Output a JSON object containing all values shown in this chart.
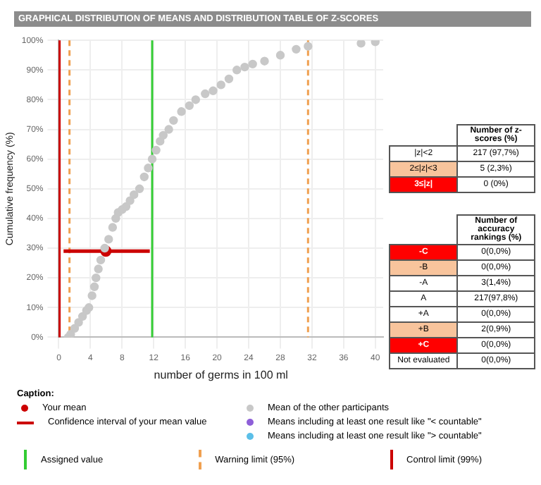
{
  "chart_data": [
    {
      "type": "scatter",
      "title": "GRAPHICAL DISTRIBUTION OF MEANS AND DISTRIBUTION TABLE OF Z-SCORES",
      "xlabel": "number of germs in 100 ml",
      "ylabel": "Cumulative frequency (%)",
      "legend_title": "Caption:",
      "legend": "bottom",
      "grid": true,
      "marker": "circle",
      "xlim": [
        0,
        41
      ],
      "xticks": [
        0,
        4,
        8,
        12,
        16,
        20,
        24,
        28,
        32,
        36,
        40
      ],
      "ylim": [
        0,
        100
      ],
      "yticks": [
        {
          "value": 0,
          "label": "0%"
        },
        {
          "value": 10,
          "label": "10%"
        },
        {
          "value": 20,
          "label": "20%"
        },
        {
          "value": 30,
          "label": "30%"
        },
        {
          "value": 40,
          "label": "40%"
        },
        {
          "value": 50,
          "label": "50%"
        },
        {
          "value": 60,
          "label": "60%"
        },
        {
          "value": 70,
          "label": "70%"
        },
        {
          "value": 80,
          "label": "80%"
        },
        {
          "value": 90,
          "label": "90%"
        },
        {
          "value": 100,
          "label": "100%"
        }
      ],
      "series": [
        {
          "name": "Mean of the other participants",
          "color": "#c8c8c8",
          "x": [
            1.2,
            1.5,
            2,
            2.5,
            3,
            3.5,
            3.8,
            4.2,
            4.5,
            4.7,
            5,
            5.3,
            5.8,
            6.3,
            6.8,
            7.2,
            7.5,
            8,
            8.5,
            9,
            9.5,
            10.2,
            10.8,
            11.3,
            11.8,
            12.3,
            12.8,
            13.2,
            13.9,
            14.5,
            15.5,
            16.5,
            17.3,
            18.5,
            19.5,
            20.5,
            21.5,
            22.5,
            23.5,
            24.5,
            26,
            28,
            30,
            31.5,
            38.2,
            40
          ],
          "values": [
            0,
            1,
            3,
            5,
            7,
            9,
            10,
            14,
            17,
            20,
            23,
            26,
            30,
            33,
            37,
            40,
            42,
            43,
            44,
            46,
            48,
            50,
            54,
            57,
            60,
            63,
            66,
            68,
            70,
            73,
            76,
            78,
            80,
            82,
            83,
            85,
            87,
            90,
            91,
            92,
            93,
            95,
            97,
            98,
            99,
            99.5
          ]
        },
        {
          "name": "Your mean",
          "color": "#cc0000",
          "x": [
            5.95
          ],
          "values": [
            29
          ],
          "xerrors": [
            [
              0.6,
              11.5
            ]
          ]
        },
        {
          "name": "Means including at least one result like \"< countable\"",
          "color": "#8e5fd8"
        },
        {
          "name": "Means including at least one result like \"> countable\"",
          "color": "#5bbfe8"
        }
      ],
      "annotations": [
        "Confidence interval of your mean value"
      ],
      "ref_lines": [
        {
          "axis": "x",
          "value": 11.8,
          "label": "Assigned value",
          "color": "#33cc33",
          "line_style": "solid"
        },
        {
          "axis": "x",
          "value": 1.35,
          "label": "Warning limit (95%)",
          "color": "#f0a050",
          "line_style": "dashed"
        },
        {
          "axis": "x",
          "value": 31.5,
          "label": null,
          "color": "#f0a050",
          "line_style": "dashed"
        },
        {
          "axis": "x",
          "value": 0.1,
          "label": "Control limit (99%)",
          "color": "#cc0000",
          "line_style": "solid"
        }
      ]
    },
    {
      "type": "other",
      "title": "Number of z-scores (%)",
      "categories": [
        "|z|<2",
        "2≤|z|<3",
        "3≤|z|"
      ],
      "value_labels": [
        "217 (97,7%)",
        "5 (2,3%)",
        "0 (0%)"
      ],
      "colors": [
        "#ffffff",
        "#f8c49c",
        "#ff0000"
      ]
    },
    {
      "type": "other",
      "title": "Number of accuracy rankings (%)",
      "categories": [
        "-C",
        "-B",
        "-A",
        "A",
        "+A",
        "+B",
        "+C",
        "Not evaluated"
      ],
      "value_labels": [
        "0(0,0%)",
        "0(0,0%)",
        "3(1,4%)",
        "217(97,8%)",
        "0(0,0%)",
        "2(0,9%)",
        "0(0,0%)",
        "0(0,0%)"
      ],
      "colors": [
        "#ff0000",
        "#f8c49c",
        "#ffffff",
        "#ffffff",
        "#ffffff",
        "#f8c49c",
        "#ff0000",
        "#ffffff"
      ]
    }
  ]
}
